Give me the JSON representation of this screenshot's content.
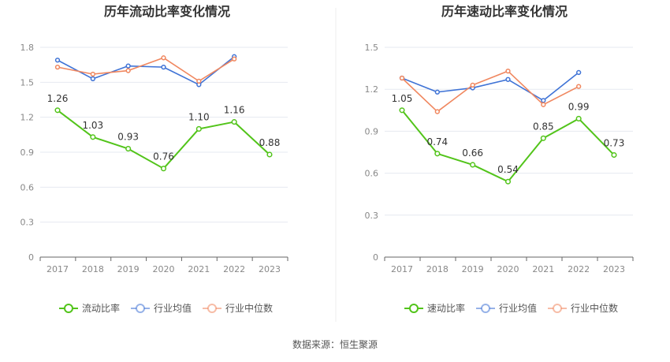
{
  "footer": {
    "source_label": "数据来源：",
    "source_value": "恒生聚源"
  },
  "colors": {
    "main": "#52c41a",
    "industry_avg": "#3f73d6",
    "industry_median": "#f0875f",
    "grid": "#e6e9f0",
    "axis": "#666666",
    "tick_text": "#888888",
    "divider": "#eeeeee"
  },
  "chart_data": [
    {
      "type": "line",
      "title": "历年流动比率变化情况",
      "categories": [
        "2017",
        "2018",
        "2019",
        "2020",
        "2021",
        "2022",
        "2023"
      ],
      "ylim": [
        0,
        1.8
      ],
      "yticks": [
        0,
        0.3,
        0.6,
        0.9,
        1.2,
        1.5,
        1.8
      ],
      "ytick_labels": [
        "0",
        "0.3",
        "0.6",
        "0.9",
        "1.2",
        "1.5",
        "1.8"
      ],
      "grid": true,
      "legend_position": "bottom",
      "series": [
        {
          "name": "流动比率",
          "role": "main",
          "values": [
            1.26,
            1.03,
            0.93,
            0.76,
            1.1,
            1.16,
            0.88
          ],
          "labels": [
            "1.26",
            "1.03",
            "0.93",
            "0.76",
            "1.10",
            "1.16",
            "0.88"
          ]
        },
        {
          "name": "行业均值",
          "role": "industry_avg",
          "values": [
            1.69,
            1.53,
            1.64,
            1.63,
            1.48,
            1.72,
            null
          ]
        },
        {
          "name": "行业中位数",
          "role": "industry_median",
          "values": [
            1.63,
            1.57,
            1.6,
            1.71,
            1.51,
            1.7,
            null
          ]
        }
      ]
    },
    {
      "type": "line",
      "title": "历年速动比率变化情况",
      "categories": [
        "2017",
        "2018",
        "2019",
        "2020",
        "2021",
        "2022",
        "2023"
      ],
      "ylim": [
        0,
        1.5
      ],
      "yticks": [
        0,
        0.3,
        0.6,
        0.9,
        1.2,
        1.5
      ],
      "ytick_labels": [
        "0",
        "0.3",
        "0.6",
        "0.9",
        "1.2",
        "1.5"
      ],
      "grid": true,
      "legend_position": "bottom",
      "series": [
        {
          "name": "速动比率",
          "role": "main",
          "values": [
            1.05,
            0.74,
            0.66,
            0.54,
            0.85,
            0.99,
            0.73
          ],
          "labels": [
            "1.05",
            "0.74",
            "0.66",
            "0.54",
            "0.85",
            "0.99",
            "0.73"
          ]
        },
        {
          "name": "行业均值",
          "role": "industry_avg",
          "values": [
            1.28,
            1.18,
            1.21,
            1.27,
            1.12,
            1.32,
            null
          ]
        },
        {
          "name": "行业中位数",
          "role": "industry_median",
          "values": [
            1.28,
            1.04,
            1.23,
            1.33,
            1.09,
            1.22,
            null
          ]
        }
      ]
    }
  ]
}
